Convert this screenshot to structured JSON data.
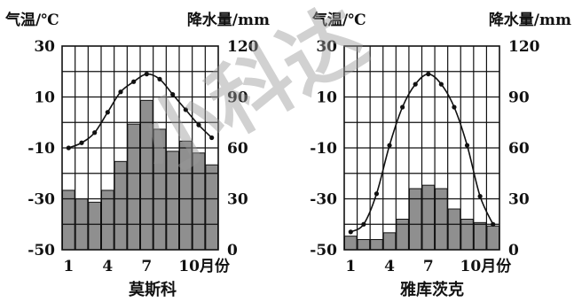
{
  "chart_data": [
    {
      "type": "bar+line",
      "title": "莫斯科",
      "y_left_label": "气温/℃",
      "y_right_label": "降水量/mm",
      "x_unit_label": "10月份",
      "x_tick_labels": [
        "1",
        "4",
        "7",
        "10月份"
      ],
      "x_tick_months": [
        1,
        4,
        7,
        10
      ],
      "y_left_ticks": [
        "30",
        "10",
        "-10",
        "-30",
        "-50"
      ],
      "y_right_ticks": [
        "120",
        "90",
        "60",
        "30",
        "0"
      ],
      "temp_range": [
        -50,
        30
      ],
      "precip_range": [
        0,
        120
      ],
      "months": [
        1,
        2,
        3,
        4,
        5,
        6,
        7,
        8,
        9,
        10,
        11,
        12
      ],
      "temperature": [
        -10,
        -8,
        -4,
        4,
        12,
        16,
        19,
        17,
        11,
        5,
        -1,
        -6
      ],
      "precipitation": [
        35,
        30,
        28,
        35,
        52,
        74,
        88,
        71,
        58,
        64,
        57,
        50
      ]
    },
    {
      "type": "bar+line",
      "title": "雅库茨克",
      "y_left_label": "气温/℃",
      "y_right_label": "降水量/mm",
      "x_unit_label": "10月份",
      "x_tick_labels": [
        "1",
        "4",
        "7",
        "10月份"
      ],
      "x_tick_months": [
        1,
        4,
        7,
        10
      ],
      "y_left_ticks": [
        "30",
        "10",
        "-10",
        "-30",
        "-50"
      ],
      "y_right_ticks": [
        "120",
        "90",
        "60",
        "30",
        "0"
      ],
      "temp_range": [
        -50,
        30
      ],
      "precip_range": [
        0,
        120
      ],
      "months": [
        1,
        2,
        3,
        4,
        5,
        6,
        7,
        8,
        9,
        10,
        11,
        12
      ],
      "temperature": [
        -43,
        -40,
        -28,
        -9,
        6,
        15,
        19,
        15,
        6,
        -9,
        -29,
        -40
      ],
      "precipitation": [
        8,
        6,
        6,
        10,
        18,
        36,
        38,
        36,
        24,
        18,
        16,
        14
      ]
    }
  ],
  "watermark_text": "小科达"
}
